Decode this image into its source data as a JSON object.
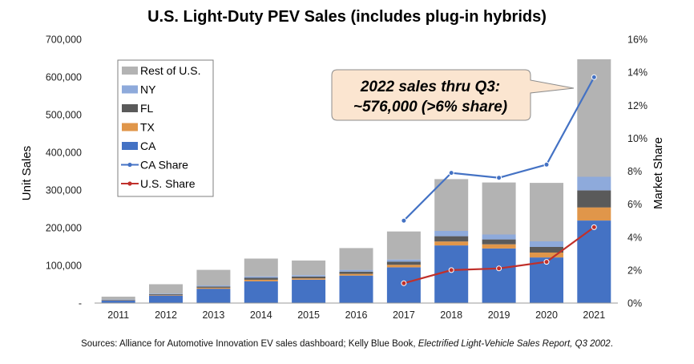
{
  "chart_data": {
    "type": "bar",
    "title": "U.S. Light-Duty PEV Sales (includes plug-in hybrids)",
    "ylabel": "Unit Sales",
    "y2label": "Market Share",
    "categories": [
      "2011",
      "2012",
      "2013",
      "2014",
      "2015",
      "2016",
      "2017",
      "2018",
      "2019",
      "2020",
      "2021"
    ],
    "ylim": [
      0,
      700000
    ],
    "y2lim": [
      0,
      16
    ],
    "yticks": [
      "-",
      "100,000",
      "200,000",
      "300,000",
      "400,000",
      "500,000",
      "600,000",
      "700,000"
    ],
    "y2ticks": [
      "0%",
      "2%",
      "4%",
      "6%",
      "8%",
      "10%",
      "12%",
      "14%",
      "16%"
    ],
    "stacked": true,
    "series": [
      {
        "name": "CA",
        "color": "#4472C4",
        "values": [
          7000,
          20000,
          38000,
          58000,
          62000,
          73000,
          95000,
          153000,
          145000,
          121000,
          219000
        ]
      },
      {
        "name": "TX",
        "color": "#E0964A",
        "values": [
          800,
          1500,
          2500,
          4000,
          3500,
          4500,
          6500,
          10500,
          11000,
          13000,
          35000
        ]
      },
      {
        "name": "FL",
        "color": "#5A5A5A",
        "values": [
          1000,
          2000,
          3500,
          5000,
          5000,
          6000,
          8000,
          14000,
          13000,
          15000,
          45000
        ]
      },
      {
        "name": "NY",
        "color": "#8EAADB",
        "values": [
          800,
          1500,
          2500,
          3500,
          3500,
          4500,
          6000,
          14000,
          13000,
          15000,
          36000
        ]
      },
      {
        "name": "Rest of U.S.",
        "color": "#B3B3B3",
        "values": [
          7400,
          25000,
          41500,
          47500,
          39000,
          58000,
          74500,
          137500,
          138000,
          155000,
          312000
        ]
      }
    ],
    "lines": [
      {
        "name": "CA Share",
        "color": "#4472C4",
        "axis": "right",
        "x": [
          "2017",
          "2018",
          "2019",
          "2020",
          "2021"
        ],
        "values": [
          5.0,
          7.9,
          7.6,
          8.4,
          13.7
        ]
      },
      {
        "name": "U.S. Share",
        "color": "#C0302B",
        "axis": "right",
        "x": [
          "2017",
          "2018",
          "2019",
          "2020",
          "2021"
        ],
        "values": [
          1.2,
          2.0,
          2.1,
          2.5,
          4.6
        ]
      }
    ],
    "legend_order": [
      "Rest of U.S.",
      "NY",
      "FL",
      "TX",
      "CA",
      "CA Share",
      "U.S. Share"
    ],
    "legend_position": "top-left",
    "grid": false,
    "annotation": {
      "lines": [
        "2022 sales thru Q3:",
        "~576,000 (>6% share)"
      ],
      "points_to": "2021"
    }
  },
  "source": {
    "prefix": "Sources: Alliance for Automotive Innovation EV sales dashboard; Kelly Blue Book, ",
    "italic": "Electrified Light-Vehicle Sales Report, Q3 2002",
    "suffix": "."
  }
}
